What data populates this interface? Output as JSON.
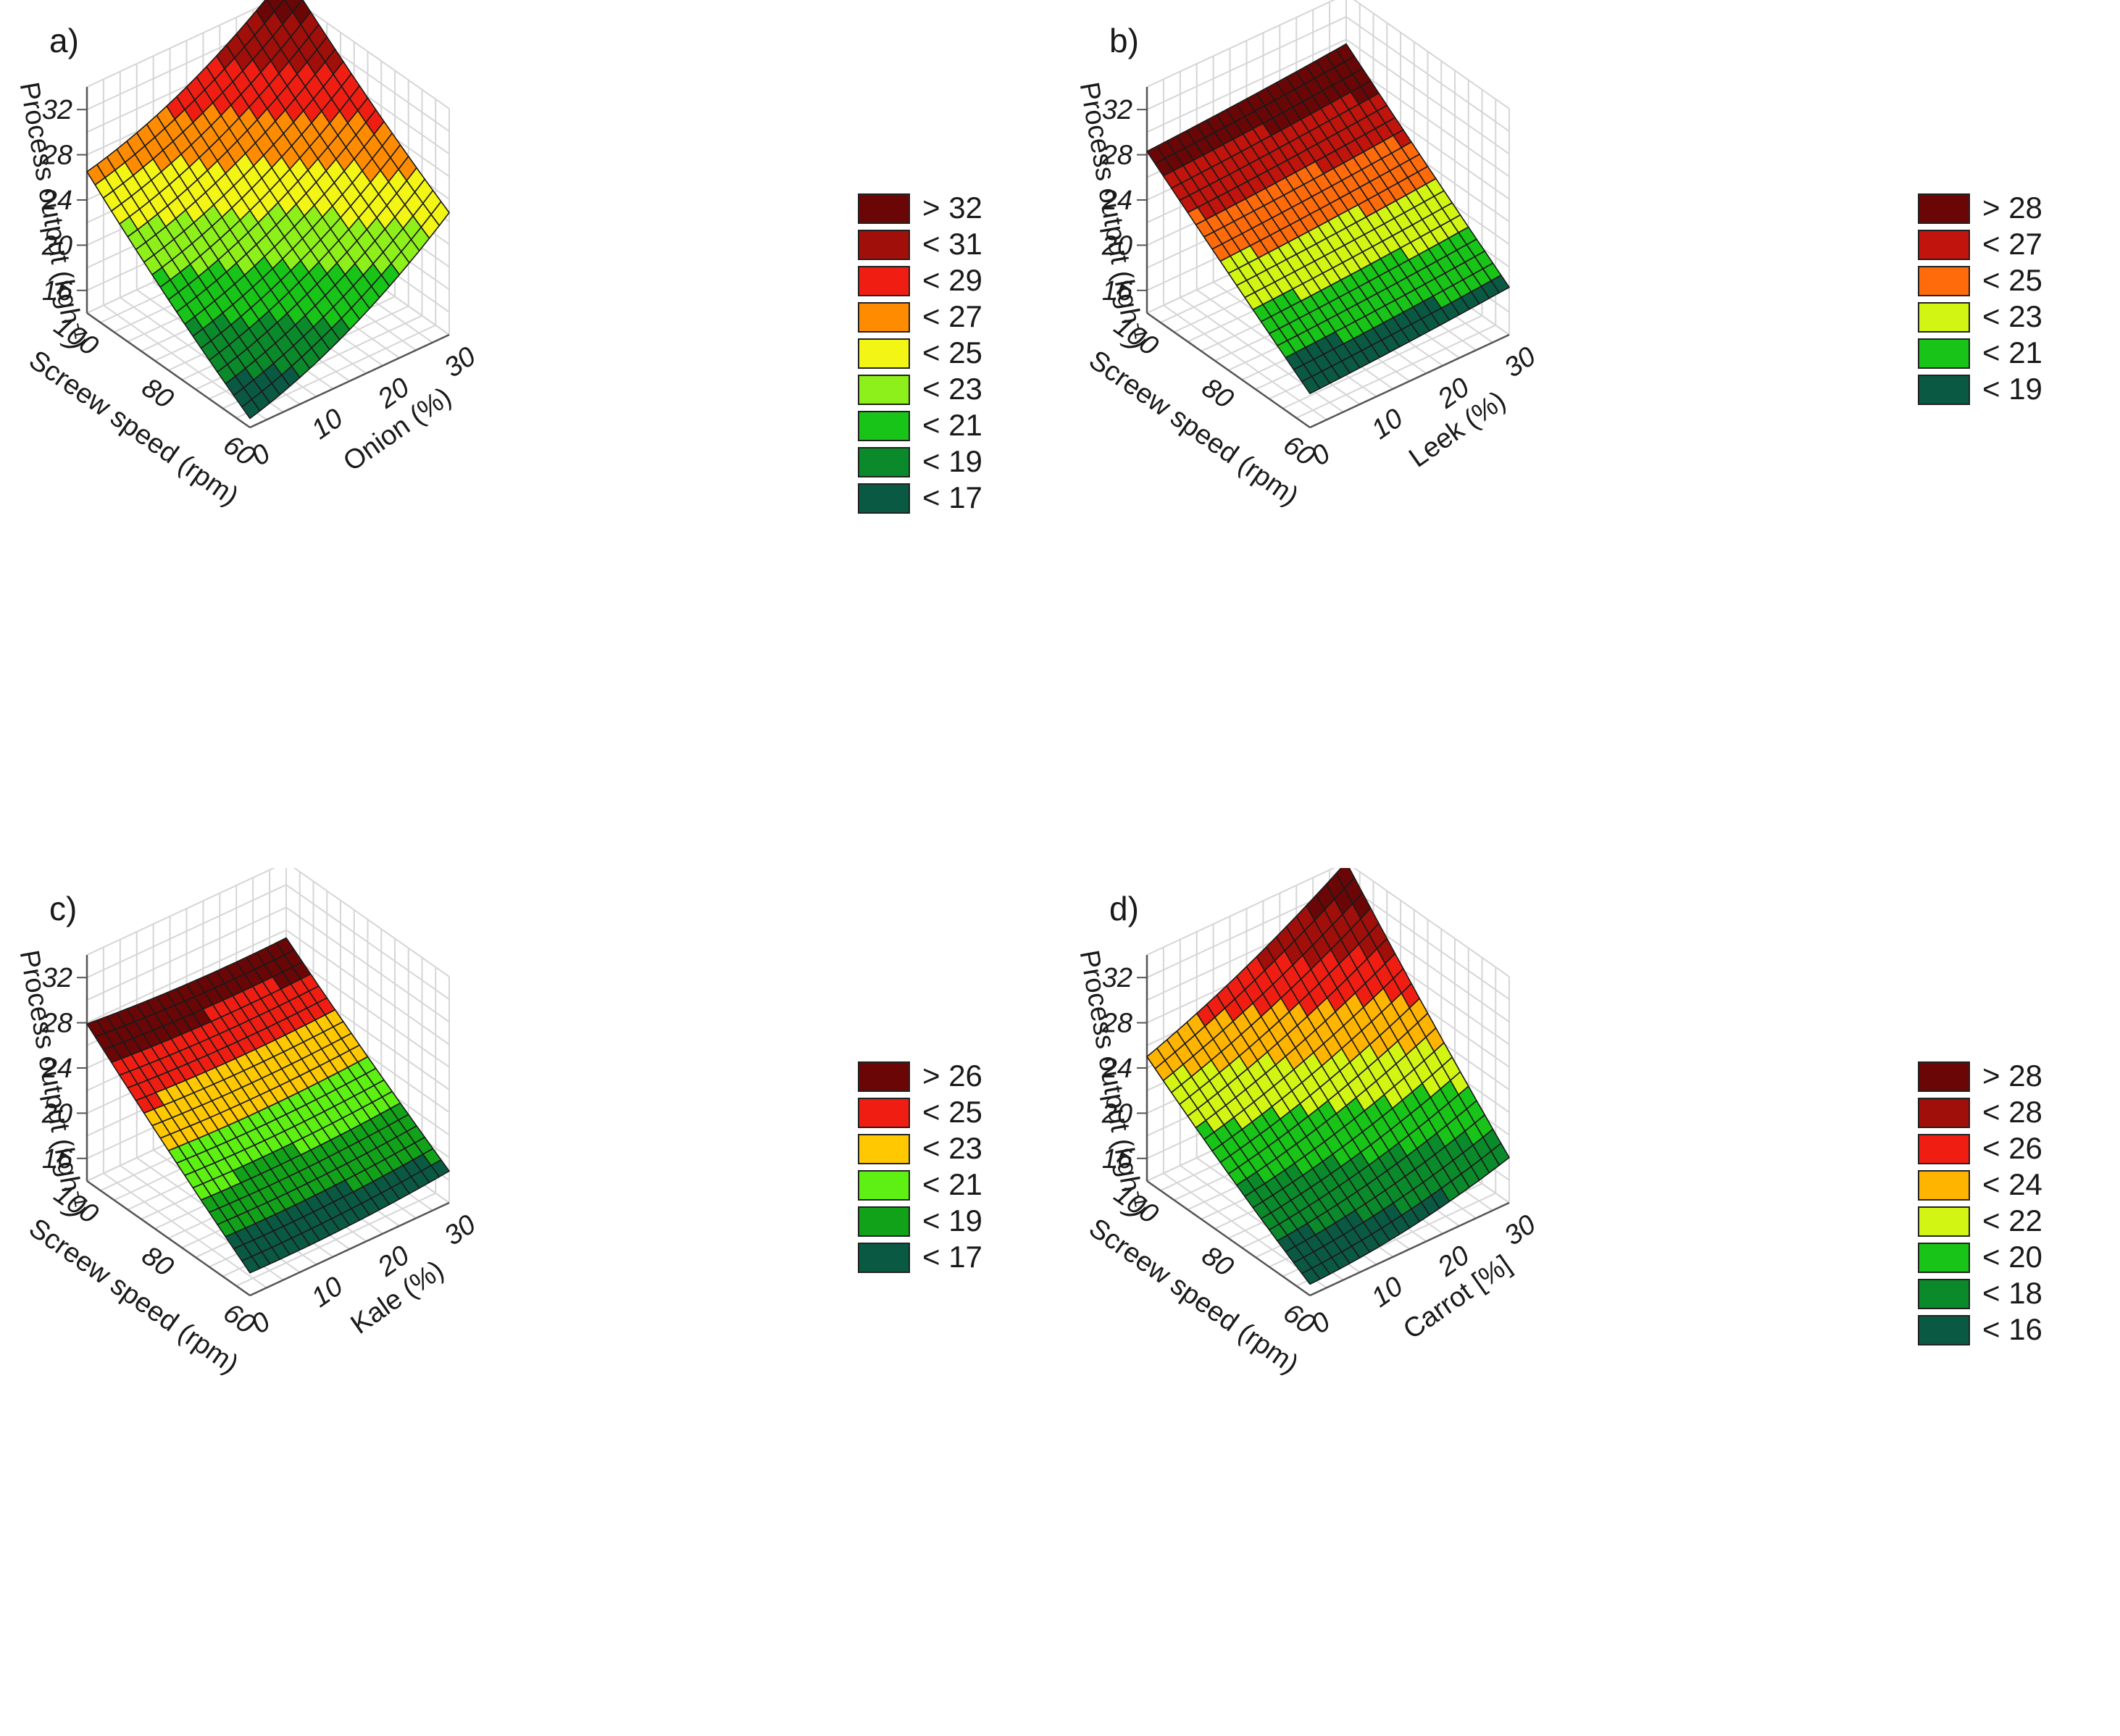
{
  "colors": {
    "palette": [
      "#0a5a43",
      "#0a7a22",
      "#18b418",
      "#55e013",
      "#a8f015",
      "#e6f514",
      "#ffd200",
      "#ff8c00",
      "#f0460a",
      "#dd1a10",
      "#a00f0a",
      "#6a0606"
    ],
    "gridline": "#d6d6d6",
    "mesh": "#1a1a1a"
  },
  "chart_data": [
    {
      "type": "surface",
      "panel_label": "a)",
      "zlabel": "Process output  (kgh",
      "zlabel_sup": "-1",
      "zlabel_close": ")",
      "xlabel": "Screew speed (rpm)",
      "ylabel": "Onion (%)",
      "x_ticks": [
        "60",
        "80",
        "100"
      ],
      "y_ticks": [
        "0",
        "10",
        "20",
        "30"
      ],
      "z_ticks": [
        "16",
        "20",
        "24",
        "28",
        "32"
      ],
      "x_range": [
        60,
        100
      ],
      "y_range": [
        0,
        30
      ],
      "z_range": [
        14,
        34
      ],
      "corner_values": {
        "x60_y0": 14.8,
        "x60_y30": 24.8,
        "x100_y0": 26.5,
        "x100_y30": 35.8
      },
      "interaction": 0,
      "curvature_y": 5.0,
      "curvature_x": 1.6,
      "legend": [
        {
          "label": "> 32",
          "color": "#6a0606"
        },
        {
          "label": "< 31",
          "color": "#a00f0a"
        },
        {
          "label": "< 29",
          "color": "#f01e12"
        },
        {
          "label": "< 27",
          "color": "#ff8c00"
        },
        {
          "label": "< 25",
          "color": "#f3f514"
        },
        {
          "label": "< 23",
          "color": "#8ef01a"
        },
        {
          "label": "< 21",
          "color": "#18c418"
        },
        {
          "label": "< 19",
          "color": "#0a8a2a"
        },
        {
          "label": "< 17",
          "color": "#0a5a43"
        }
      ]
    },
    {
      "type": "surface",
      "panel_label": "b)",
      "zlabel": "Process output  (kgh",
      "zlabel_sup": "-1",
      "zlabel_close": ")",
      "xlabel": "Screew speed (rpm)",
      "ylabel": "Leek (%)",
      "x_ticks": [
        "60",
        "80",
        "100"
      ],
      "y_ticks": [
        "0",
        "10",
        "20",
        "30"
      ],
      "z_ticks": [
        "16",
        "20",
        "24",
        "28",
        "32"
      ],
      "x_range": [
        60,
        100
      ],
      "y_range": [
        0,
        30
      ],
      "z_range": [
        14,
        34
      ],
      "corner_values": {
        "x60_y0": 17.0,
        "x60_y30": 18.2,
        "x100_y0": 28.3,
        "x100_y30": 29.6
      },
      "interaction": 0,
      "curvature_y": 0.4,
      "curvature_x": 0.3,
      "legend": [
        {
          "label": "> 28",
          "color": "#6a0606"
        },
        {
          "label": "< 27",
          "color": "#c0140c"
        },
        {
          "label": "< 25",
          "color": "#ff6a0a"
        },
        {
          "label": "< 23",
          "color": "#d2f514"
        },
        {
          "label": "< 21",
          "color": "#18c418"
        },
        {
          "label": "< 19",
          "color": "#0a5a43"
        }
      ]
    },
    {
      "type": "surface",
      "panel_label": "c)",
      "zlabel": "Process output  (kgh",
      "zlabel_sup": "-1",
      "zlabel_close": ")",
      "xlabel": "Screew speed (rpm)",
      "ylabel": "Kale (%)",
      "x_ticks": [
        "60",
        "80",
        "100"
      ],
      "y_ticks": [
        "0",
        "10",
        "20",
        "30"
      ],
      "z_ticks": [
        "16",
        "20",
        "24",
        "28",
        "32"
      ],
      "x_range": [
        60,
        100
      ],
      "y_range": [
        0,
        30
      ],
      "z_range": [
        14,
        34
      ],
      "corner_values": {
        "x60_y0": 16.0,
        "x60_y30": 16.8,
        "x100_y0": 27.9,
        "x100_y30": 27.3
      },
      "interaction": 0,
      "curvature_y": 1.2,
      "curvature_x": 0.8,
      "legend": [
        {
          "label": "> 26",
          "color": "#6a0606"
        },
        {
          "label": "< 25",
          "color": "#f01e12"
        },
        {
          "label": "< 23",
          "color": "#ffc800"
        },
        {
          "label": "< 21",
          "color": "#5ef013"
        },
        {
          "label": "< 19",
          "color": "#12a21a"
        },
        {
          "label": "< 17",
          "color": "#0a5a43"
        }
      ]
    },
    {
      "type": "surface",
      "panel_label": "d)",
      "zlabel": "Process output  (kgh",
      "zlabel_sup": "-1",
      "zlabel_close": ")",
      "xlabel": "Screew speed (rpm)",
      "ylabel": "Carrot [%]",
      "x_ticks": [
        "60",
        "80",
        "100"
      ],
      "y_ticks": [
        "0",
        "10",
        "20",
        "30"
      ],
      "z_ticks": [
        "16",
        "20",
        "24",
        "28",
        "32"
      ],
      "x_range": [
        60,
        100
      ],
      "y_range": [
        0,
        30
      ],
      "z_range": [
        14,
        34
      ],
      "corner_values": {
        "x60_y0": 15.0,
        "x60_y30": 18.0,
        "x100_y0": 25.0,
        "x100_y30": 34.0
      },
      "interaction": 0,
      "curvature_y": 2.5,
      "curvature_x": 1.2,
      "legend": [
        {
          "label": "> 28",
          "color": "#6a0606"
        },
        {
          "label": "< 28",
          "color": "#a00f0a"
        },
        {
          "label": "< 26",
          "color": "#f01e12"
        },
        {
          "label": "< 24",
          "color": "#ffb400"
        },
        {
          "label": "< 22",
          "color": "#d2f514"
        },
        {
          "label": "< 20",
          "color": "#18c418"
        },
        {
          "label": "< 18",
          "color": "#0a8a2a"
        },
        {
          "label": "< 16",
          "color": "#0a5a43"
        }
      ]
    }
  ]
}
